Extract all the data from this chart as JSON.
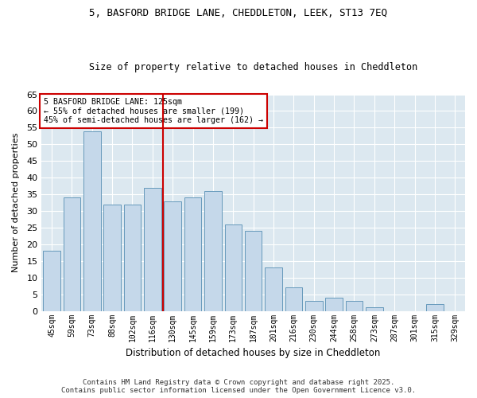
{
  "title1": "5, BASFORD BRIDGE LANE, CHEDDLETON, LEEK, ST13 7EQ",
  "title2": "Size of property relative to detached houses in Cheddleton",
  "xlabel": "Distribution of detached houses by size in Cheddleton",
  "ylabel": "Number of detached properties",
  "categories": [
    "45sqm",
    "59sqm",
    "73sqm",
    "88sqm",
    "102sqm",
    "116sqm",
    "130sqm",
    "145sqm",
    "159sqm",
    "173sqm",
    "187sqm",
    "201sqm",
    "216sqm",
    "230sqm",
    "244sqm",
    "258sqm",
    "273sqm",
    "287sqm",
    "301sqm",
    "315sqm",
    "329sqm"
  ],
  "values": [
    18,
    34,
    54,
    32,
    32,
    37,
    33,
    34,
    36,
    26,
    24,
    13,
    7,
    3,
    4,
    3,
    1,
    0,
    0,
    2,
    0
  ],
  "bar_color": "#c5d8ea",
  "bar_edge_color": "#6699bb",
  "vline_x": 5.5,
  "vline_color": "#cc0000",
  "annotation_text": "5 BASFORD BRIDGE LANE: 125sqm\n← 55% of detached houses are smaller (199)\n45% of semi-detached houses are larger (162) →",
  "annotation_box_color": "#ffffff",
  "annotation_box_edge": "#cc0000",
  "ylim": [
    0,
    65
  ],
  "yticks": [
    0,
    5,
    10,
    15,
    20,
    25,
    30,
    35,
    40,
    45,
    50,
    55,
    60,
    65
  ],
  "fig_bg_color": "#ffffff",
  "plot_bg_color": "#dce8f0",
  "grid_color": "#ffffff",
  "footer1": "Contains HM Land Registry data © Crown copyright and database right 2025.",
  "footer2": "Contains public sector information licensed under the Open Government Licence v3.0."
}
